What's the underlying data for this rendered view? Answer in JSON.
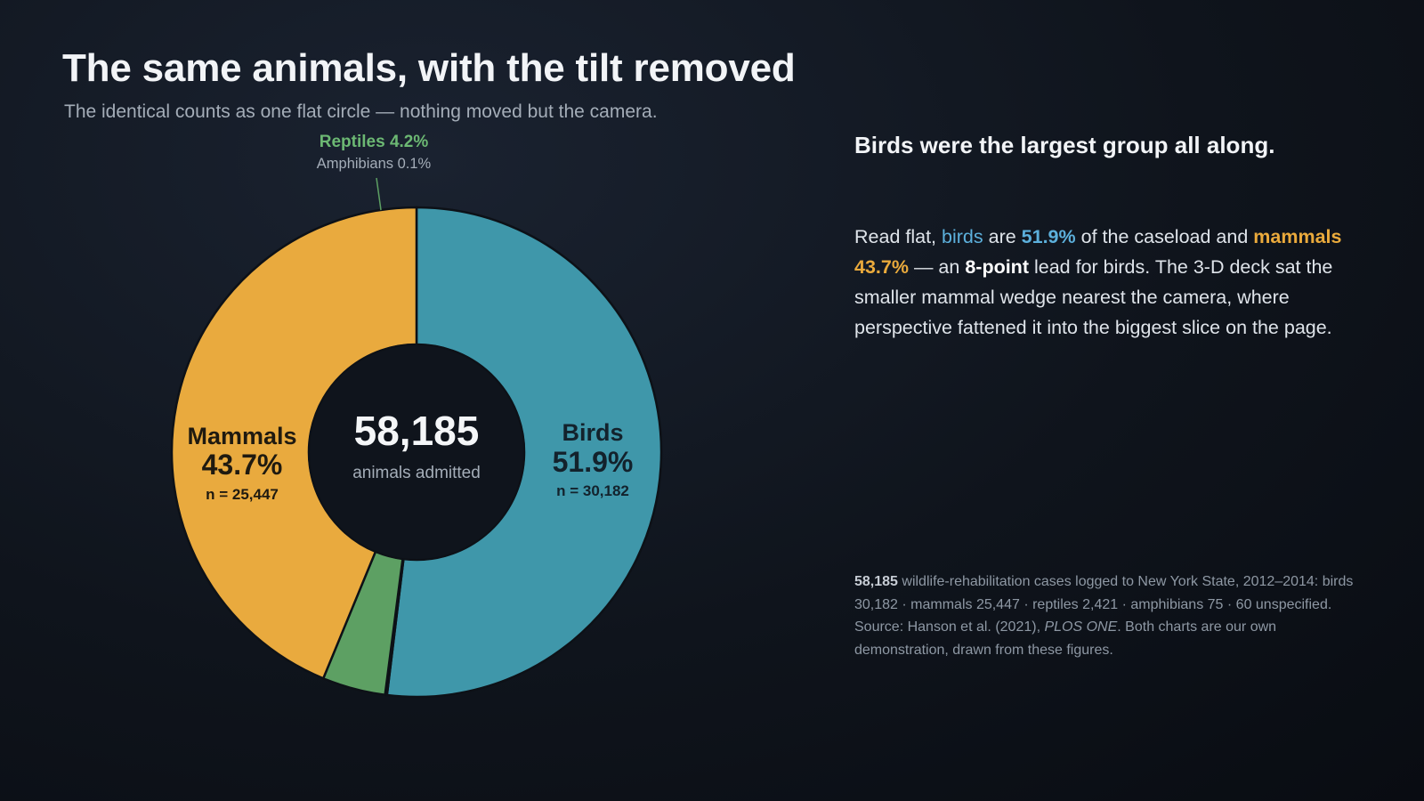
{
  "header": {
    "title": "The same animals, with the tilt removed",
    "subtitle": "The identical counts as one flat circle — nothing moved but the camera."
  },
  "center": {
    "total": "58,185",
    "label": "animals admitted"
  },
  "slices": [
    {
      "name": "Birds",
      "pct_label": "51.9%",
      "n_label": "n = 30,182",
      "value": 30182,
      "color": "#3f97aa"
    },
    {
      "name": "Amphibians",
      "pct_label": "0.1%",
      "n_label": "",
      "value": 75,
      "color": "#6f8fb0"
    },
    {
      "name": "Reptiles",
      "pct_label": "4.2%",
      "n_label": "",
      "value": 2421,
      "color": "#5da063"
    },
    {
      "name": "Mammals",
      "pct_label": "43.7%",
      "n_label": "n = 25,447",
      "value": 25447,
      "color": "#e9aa3e"
    }
  ],
  "callouts": {
    "reptiles": "Reptiles 4.2%",
    "amphibians": "Amphibians 0.1%"
  },
  "panel": {
    "headline": "Birds were the largest group all along.",
    "p1": "Read flat,",
    "birds_word": "birds",
    "p2": "are",
    "birds_pct": "51.9%",
    "p3": "of the caseload and",
    "mammals_word": "mammals 43.7%",
    "p4": "— an",
    "lead": "8-point",
    "p5": "lead for birds. The 3-D deck sat the smaller mammal wedge nearest the camera, where perspective fattened it into the biggest slice on the page."
  },
  "notes": {
    "total_bold": "58,185",
    "line1": "wildlife-rehabilitation cases logged to New York State, 2012–2014: birds 30,182 · mammals 25,447 · reptiles 2,421 · amphibians 75 · 60 unspecified.",
    "source_prefix": "Source: Hanson et al. (2021),",
    "source_journal": "PLOS ONE",
    "source_suffix": ". Both charts are our own demonstration, drawn from these figures."
  },
  "chart_data": {
    "type": "pie",
    "title": "The same animals, with the tilt removed",
    "subtitle": "The identical counts as one flat circle — nothing moved but the camera.",
    "categories": [
      "Birds",
      "Amphibians",
      "Reptiles",
      "Mammals"
    ],
    "values": [
      30182,
      75,
      2421,
      25447
    ],
    "percent_labels": [
      "51.9%",
      "0.1%",
      "4.2%",
      "43.7%"
    ],
    "total": 58185,
    "center_label": "animals admitted",
    "donut": true,
    "colors": [
      "#3f97aa",
      "#6f8fb0",
      "#5da063",
      "#e9aa3e"
    ]
  }
}
